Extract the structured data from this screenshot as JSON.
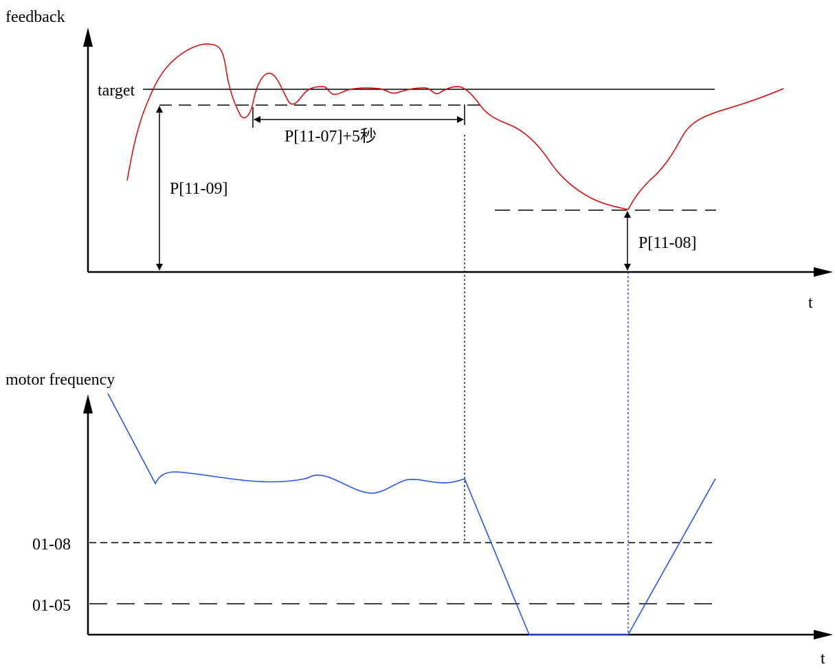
{
  "top_chart": {
    "y_axis_label": "feedback",
    "x_axis_label": "t",
    "target_label": "target",
    "sleep_delay_label": "P[11-07]+5秒",
    "sleep_level_label": "P[11-09]",
    "wake_level_label": "P[11-08]"
  },
  "bottom_chart": {
    "y_axis_label": "motor frequency",
    "x_axis_label": "t",
    "level_high_label": "01-08",
    "level_low_label": "01-05"
  },
  "colors": {
    "feedback_curve": "#e00000",
    "frequency_curve": "#2255ee",
    "wake_marker_line": "#1a1acc",
    "axes": "#000000"
  }
}
